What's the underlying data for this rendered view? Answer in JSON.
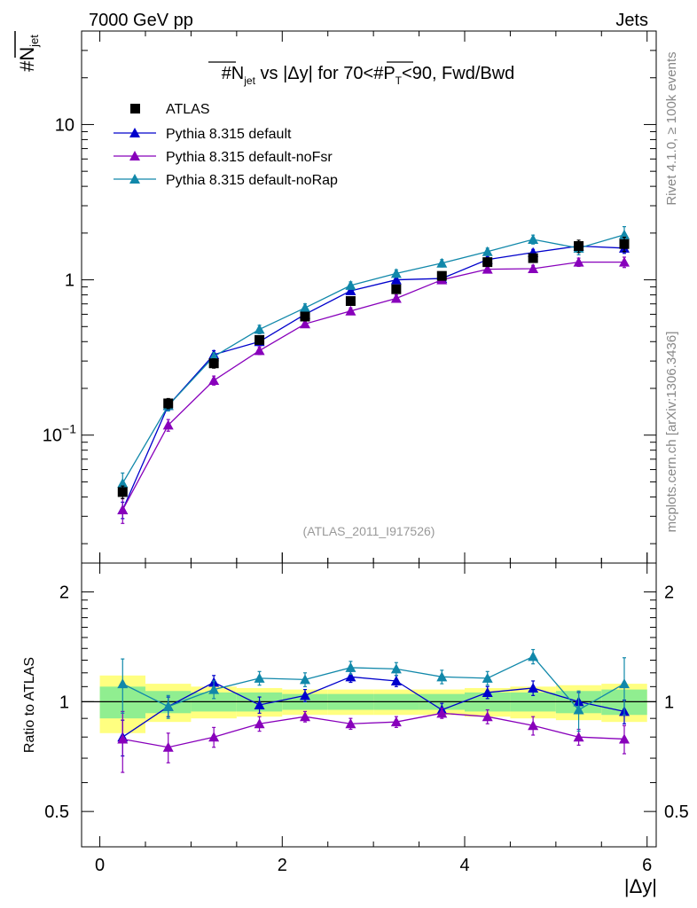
{
  "header": {
    "left": "7000 GeV pp",
    "right": "Jets"
  },
  "side_labels": {
    "top": "Rivet 4.1.0, ≥ 100k events",
    "bottom": "mcplots.cern.ch [arXiv:1306.3436]"
  },
  "chart_data": {
    "type": "line",
    "title_parts": {
      "n_main": "#N",
      "n_sub": "jet",
      "mid": " vs |Δy| for 70<#P",
      "p_sub": "T",
      "end": "<90, Fwd/Bwd"
    },
    "ylabel_parts": {
      "main": "#N",
      "sub": "jet"
    },
    "xlabel": "|Δy|",
    "ratio_ylabel": "Ratio to ATLAS",
    "analysis_tag": "(ATLAS_2011_I917526)",
    "xlim": [
      -0.2,
      6.1
    ],
    "ylim": [
      0.015,
      40
    ],
    "ratio_ylim": [
      0.4,
      2.4
    ],
    "x_ticks": [
      "0",
      "2",
      "4",
      "6"
    ],
    "y_ticks": [
      {
        "value": 10,
        "label": "10"
      },
      {
        "value": 1,
        "label": "1"
      },
      {
        "value": 0.1,
        "label": "10",
        "exp": "−1"
      }
    ],
    "ratio_y_ticks": [
      "0.5",
      "1",
      "2"
    ],
    "x": [
      0.25,
      0.75,
      1.25,
      1.75,
      2.25,
      2.75,
      3.25,
      3.75,
      4.25,
      4.75,
      5.25,
      5.75
    ],
    "bin_edges": [
      0,
      0.5,
      1,
      1.5,
      2,
      2.5,
      3,
      3.5,
      4,
      4.5,
      5,
      5.5,
      6
    ],
    "data": {
      "name": "ATLAS",
      "values": [
        0.043,
        0.16,
        0.29,
        0.41,
        0.58,
        0.73,
        0.87,
        1.06,
        1.3,
        1.38,
        1.65,
        1.7
      ],
      "errors": [
        0.004,
        0.012,
        0.02,
        0.025,
        0.03,
        0.04,
        0.05,
        0.06,
        0.07,
        0.08,
        0.15,
        0.18
      ],
      "color": "#000000"
    },
    "ratio_band_stat": [
      0.1,
      0.07,
      0.06,
      0.06,
      0.05,
      0.05,
      0.05,
      0.05,
      0.06,
      0.06,
      0.07,
      0.08
    ],
    "ratio_band_total": [
      0.18,
      0.12,
      0.1,
      0.09,
      0.08,
      0.08,
      0.08,
      0.08,
      0.09,
      0.1,
      0.11,
      0.12
    ],
    "band_colors": {
      "stat": "#90ee90",
      "total": "#ffff80"
    },
    "series": [
      {
        "name": "Pythia 8.315 default",
        "color": "#0000cc",
        "values": [
          0.033,
          0.155,
          0.33,
          0.4,
          0.6,
          0.85,
          1.0,
          1.02,
          1.35,
          1.5,
          1.65,
          1.6
        ],
        "errors": [
          0.004,
          0.01,
          0.02,
          0.02,
          0.03,
          0.04,
          0.05,
          0.05,
          0.06,
          0.07,
          0.1,
          0.12
        ],
        "ratio": [
          0.8,
          0.97,
          1.13,
          0.98,
          1.04,
          1.17,
          1.14,
          0.95,
          1.06,
          1.09,
          1.0,
          0.94
        ],
        "ratio_err": [
          0.09,
          0.06,
          0.05,
          0.05,
          0.04,
          0.04,
          0.04,
          0.04,
          0.04,
          0.05,
          0.06,
          0.07
        ]
      },
      {
        "name": "Pythia 8.315 default-noFsr",
        "color": "#8800bb",
        "values": [
          0.033,
          0.116,
          0.225,
          0.35,
          0.52,
          0.63,
          0.76,
          1.0,
          1.17,
          1.18,
          1.3,
          1.3
        ],
        "errors": [
          0.006,
          0.01,
          0.015,
          0.02,
          0.025,
          0.03,
          0.04,
          0.05,
          0.05,
          0.06,
          0.08,
          0.1
        ],
        "ratio": [
          0.79,
          0.75,
          0.8,
          0.87,
          0.91,
          0.87,
          0.88,
          0.93,
          0.91,
          0.86,
          0.8,
          0.79
        ],
        "ratio_err": [
          0.15,
          0.07,
          0.05,
          0.04,
          0.03,
          0.03,
          0.03,
          0.03,
          0.04,
          0.05,
          0.04,
          0.07
        ]
      },
      {
        "name": "Pythia 8.315 default-noRap",
        "color": "#1188aa",
        "values": [
          0.049,
          0.155,
          0.32,
          0.48,
          0.66,
          0.92,
          1.1,
          1.28,
          1.52,
          1.82,
          1.6,
          1.95
        ],
        "errors": [
          0.008,
          0.012,
          0.02,
          0.03,
          0.04,
          0.05,
          0.06,
          0.07,
          0.08,
          0.12,
          0.15,
          0.25
        ],
        "ratio": [
          1.12,
          0.97,
          1.08,
          1.16,
          1.15,
          1.24,
          1.23,
          1.17,
          1.16,
          1.33,
          0.95,
          1.12
        ],
        "ratio_err": [
          0.19,
          0.07,
          0.06,
          0.05,
          0.05,
          0.05,
          0.05,
          0.05,
          0.05,
          0.06,
          0.12,
          0.2
        ]
      }
    ]
  }
}
